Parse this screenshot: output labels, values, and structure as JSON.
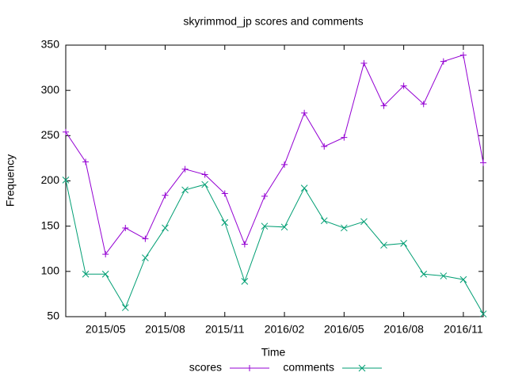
{
  "chart_data": {
    "type": "line",
    "title": "skyrimmod_jp scores and comments",
    "x_label": "Time",
    "y_label": "Frequency",
    "x": [
      "2015/03",
      "2015/04",
      "2015/05",
      "2015/06",
      "2015/07",
      "2015/08",
      "2015/09",
      "2015/10",
      "2015/11",
      "2015/12",
      "2016/01",
      "2016/02",
      "2016/03",
      "2016/04",
      "2016/05",
      "2016/06",
      "2016/07",
      "2016/08",
      "2016/09",
      "2016/10",
      "2016/11",
      "2016/12"
    ],
    "xlim": [
      "2015/03",
      "2016/12"
    ],
    "xticks": [
      "2015/05",
      "2015/08",
      "2015/11",
      "2016/02",
      "2016/05",
      "2016/08",
      "2016/11"
    ],
    "ylim": [
      50,
      350
    ],
    "yticks": [
      50,
      100,
      150,
      200,
      250,
      300,
      350
    ],
    "grid": false,
    "legend": "bottom",
    "series": [
      {
        "name": "scores",
        "color": "#9400d3",
        "marker": "+",
        "values": [
          254,
          221,
          119,
          148,
          136,
          184,
          213,
          207,
          186,
          130,
          183,
          218,
          275,
          238,
          248,
          330,
          283,
          305,
          285,
          332,
          339,
          220
        ]
      },
      {
        "name": "comments",
        "color": "#009e73",
        "marker": "x",
        "values": [
          201,
          97,
          97,
          60,
          115,
          148,
          190,
          196,
          154,
          89,
          150,
          149,
          192,
          156,
          148,
          155,
          129,
          131,
          97,
          95,
          91,
          53
        ]
      }
    ]
  }
}
